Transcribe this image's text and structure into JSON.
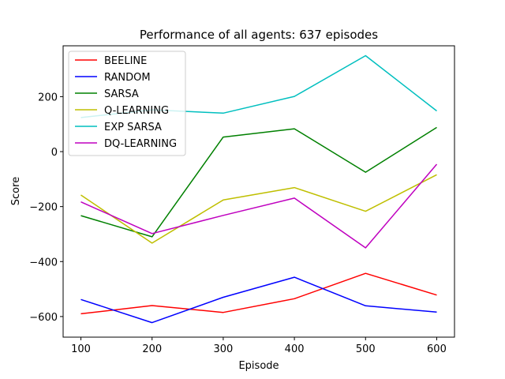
{
  "chart_data": {
    "type": "line",
    "title": "Performance of all agents: 637 episodes",
    "xlabel": "Episode",
    "ylabel": "Score",
    "x": [
      100,
      200,
      300,
      400,
      500,
      600
    ],
    "xticks": [
      100,
      200,
      300,
      400,
      500,
      600
    ],
    "yticks": [
      -600,
      -400,
      -200,
      0,
      200
    ],
    "xlim": [
      75,
      625
    ],
    "ylim": [
      -675,
      385
    ],
    "grid": false,
    "legend_position": "top-left",
    "series": [
      {
        "name": "BEELINE",
        "color": "#ff0000",
        "values": [
          -590,
          -560,
          -585,
          -535,
          -443,
          -522
        ]
      },
      {
        "name": "RANDOM",
        "color": "#0000ff",
        "values": [
          -538,
          -622,
          -530,
          -457,
          -561,
          -584
        ]
      },
      {
        "name": "SARSA",
        "color": "#008000",
        "values": [
          -233,
          -310,
          53,
          83,
          -75,
          88
        ]
      },
      {
        "name": "Q-LEARNING",
        "color": "#bfbf00",
        "values": [
          -158,
          -333,
          -176,
          -131,
          -217,
          -84
        ]
      },
      {
        "name": "EXP SARSA",
        "color": "#00bfbf",
        "values": [
          124,
          152,
          140,
          201,
          349,
          148
        ]
      },
      {
        "name": "DQ-LEARNING",
        "color": "#bf00bf",
        "values": [
          -183,
          -298,
          -232,
          -169,
          -350,
          -46
        ]
      }
    ]
  }
}
